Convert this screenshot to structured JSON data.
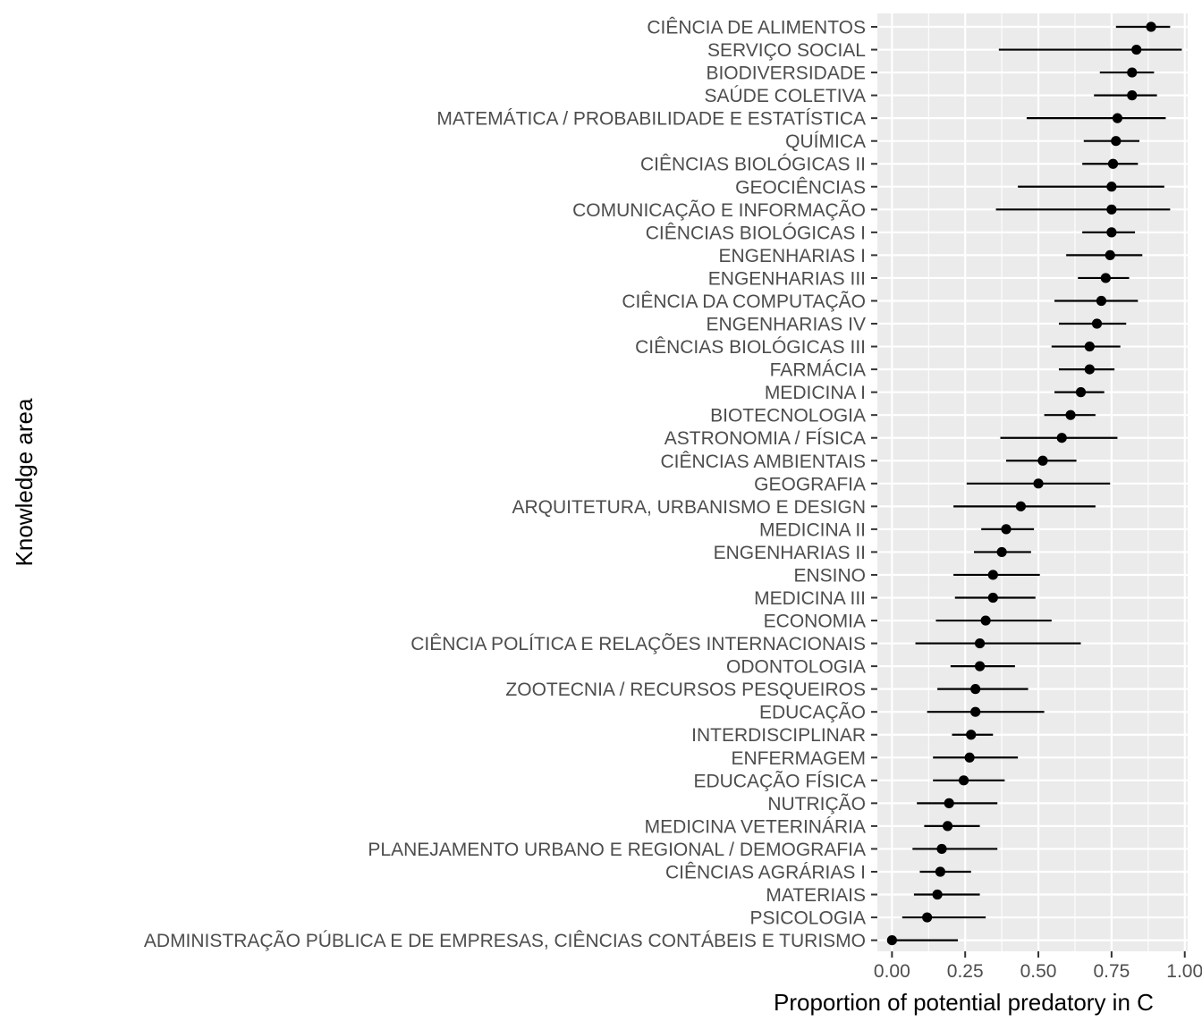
{
  "chart_data": {
    "type": "scatter",
    "variant": "point-with-horizontal-error-bars",
    "xlabel": "Proportion of potential predatory in C",
    "ylabel": "Knowledge area",
    "xlim": [
      -0.05,
      1.01
    ],
    "x_ticks": [
      0.0,
      0.25,
      0.5,
      0.75,
      1.0
    ],
    "x_tick_labels": [
      "0.00",
      "0.25",
      "0.50",
      "0.75",
      "1.00"
    ],
    "grid": true,
    "legend": "none",
    "colors": {
      "panel": "#ebebeb",
      "grid": "#ffffff",
      "point": "#000000",
      "tick_text": "#4d4d4d"
    },
    "series": [
      {
        "points": [
          {
            "category": "CIÊNCIA DE ALIMENTOS",
            "value": 0.885,
            "low": 0.765,
            "high": 0.95
          },
          {
            "category": "SERVIÇO SOCIAL",
            "value": 0.835,
            "low": 0.365,
            "high": 0.99
          },
          {
            "category": "BIODIVERSIDADE",
            "value": 0.82,
            "low": 0.71,
            "high": 0.895
          },
          {
            "category": "SAÚDE COLETIVA",
            "value": 0.82,
            "low": 0.69,
            "high": 0.905
          },
          {
            "category": "MATEMÁTICA / PROBABILIDADE E ESTATÍSTICA",
            "value": 0.77,
            "low": 0.46,
            "high": 0.935
          },
          {
            "category": "QUÍMICA",
            "value": 0.765,
            "low": 0.655,
            "high": 0.845
          },
          {
            "category": "CIÊNCIAS BIOLÓGICAS II",
            "value": 0.755,
            "low": 0.65,
            "high": 0.84
          },
          {
            "category": "GEOCIÊNCIAS",
            "value": 0.75,
            "low": 0.43,
            "high": 0.93
          },
          {
            "category": "COMUNICAÇÃO E INFORMAÇÃO",
            "value": 0.75,
            "low": 0.355,
            "high": 0.95
          },
          {
            "category": "CIÊNCIAS BIOLÓGICAS I",
            "value": 0.75,
            "low": 0.65,
            "high": 0.83
          },
          {
            "category": "ENGENHARIAS I",
            "value": 0.745,
            "low": 0.595,
            "high": 0.855
          },
          {
            "category": "ENGENHARIAS III",
            "value": 0.73,
            "low": 0.635,
            "high": 0.81
          },
          {
            "category": "CIÊNCIA DA COMPUTAÇÃO",
            "value": 0.715,
            "low": 0.555,
            "high": 0.84
          },
          {
            "category": "ENGENHARIAS IV",
            "value": 0.7,
            "low": 0.57,
            "high": 0.8
          },
          {
            "category": "CIÊNCIAS BIOLÓGICAS III",
            "value": 0.675,
            "low": 0.545,
            "high": 0.78
          },
          {
            "category": "FARMÁCIA",
            "value": 0.675,
            "low": 0.57,
            "high": 0.76
          },
          {
            "category": "MEDICINA I",
            "value": 0.645,
            "low": 0.555,
            "high": 0.725
          },
          {
            "category": "BIOTECNOLOGIA",
            "value": 0.61,
            "low": 0.52,
            "high": 0.695
          },
          {
            "category": "ASTRONOMIA / FÍSICA",
            "value": 0.58,
            "low": 0.37,
            "high": 0.77
          },
          {
            "category": "CIÊNCIAS AMBIENTAIS",
            "value": 0.515,
            "low": 0.39,
            "high": 0.63
          },
          {
            "category": "GEOGRAFIA",
            "value": 0.5,
            "low": 0.255,
            "high": 0.745
          },
          {
            "category": "ARQUITETURA, URBANISMO E DESIGN",
            "value": 0.44,
            "low": 0.21,
            "high": 0.695
          },
          {
            "category": "MEDICINA II",
            "value": 0.39,
            "low": 0.305,
            "high": 0.485
          },
          {
            "category": "ENGENHARIAS II",
            "value": 0.375,
            "low": 0.28,
            "high": 0.475
          },
          {
            "category": "ENSINO",
            "value": 0.345,
            "low": 0.21,
            "high": 0.505
          },
          {
            "category": "MEDICINA III",
            "value": 0.345,
            "low": 0.215,
            "high": 0.49
          },
          {
            "category": "ECONOMIA",
            "value": 0.32,
            "low": 0.15,
            "high": 0.545
          },
          {
            "category": "CIÊNCIA POLÍTICA E RELAÇÕES INTERNACIONAIS",
            "value": 0.3,
            "low": 0.08,
            "high": 0.645
          },
          {
            "category": "ODONTOLOGIA",
            "value": 0.3,
            "low": 0.2,
            "high": 0.42
          },
          {
            "category": "ZOOTECNIA / RECURSOS PESQUEIROS",
            "value": 0.285,
            "low": 0.155,
            "high": 0.465
          },
          {
            "category": "EDUCAÇÃO",
            "value": 0.285,
            "low": 0.12,
            "high": 0.52
          },
          {
            "category": "INTERDISCIPLINAR",
            "value": 0.27,
            "low": 0.205,
            "high": 0.345
          },
          {
            "category": "ENFERMAGEM",
            "value": 0.265,
            "low": 0.14,
            "high": 0.43
          },
          {
            "category": "EDUCAÇÃO FÍSICA",
            "value": 0.245,
            "low": 0.14,
            "high": 0.385
          },
          {
            "category": "NUTRIÇÃO",
            "value": 0.195,
            "low": 0.085,
            "high": 0.36
          },
          {
            "category": "MEDICINA VETERINÁRIA",
            "value": 0.19,
            "low": 0.11,
            "high": 0.3
          },
          {
            "category": "PLANEJAMENTO URBANO E REGIONAL / DEMOGRAFIA",
            "value": 0.17,
            "low": 0.07,
            "high": 0.36
          },
          {
            "category": "CIÊNCIAS AGRÁRIAS I",
            "value": 0.165,
            "low": 0.095,
            "high": 0.27
          },
          {
            "category": "MATERIAIS",
            "value": 0.155,
            "low": 0.075,
            "high": 0.3
          },
          {
            "category": "PSICOLOGIA",
            "value": 0.12,
            "low": 0.035,
            "high": 0.32
          },
          {
            "category": "ADMINISTRAÇÃO PÚBLICA E DE EMPRESAS, CIÊNCIAS CONTÁBEIS E TURISMO",
            "value": 0.0,
            "low": 0.0,
            "high": 0.225
          }
        ]
      }
    ]
  }
}
